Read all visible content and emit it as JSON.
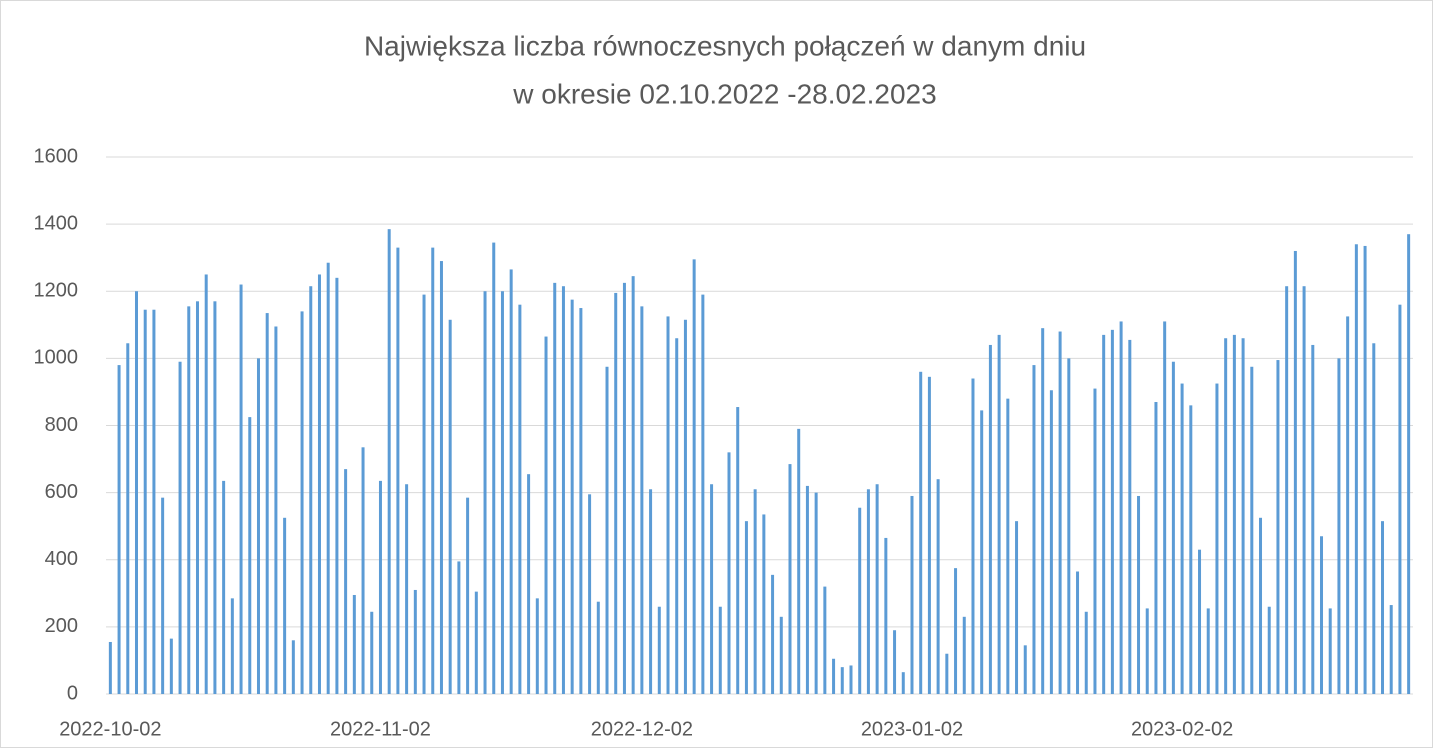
{
  "chart_data": {
    "type": "bar",
    "title": [
      "Największa liczba równoczesnych połączeń w danym dniu",
      "w okresie 02.10.2022 -28.02.2023"
    ],
    "categories": [
      "2022-10-02",
      null,
      null,
      null,
      null,
      null,
      null,
      null,
      null,
      null,
      null,
      null,
      null,
      null,
      null,
      null,
      null,
      null,
      null,
      null,
      null,
      null,
      null,
      null,
      null,
      null,
      null,
      null,
      null,
      null,
      null,
      "2022-11-02",
      null,
      null,
      null,
      null,
      null,
      null,
      null,
      null,
      null,
      null,
      null,
      null,
      null,
      null,
      null,
      null,
      null,
      null,
      null,
      null,
      null,
      null,
      null,
      null,
      null,
      null,
      null,
      null,
      null,
      "2022-12-02",
      null,
      null,
      null,
      null,
      null,
      null,
      null,
      null,
      null,
      null,
      null,
      null,
      null,
      null,
      null,
      null,
      null,
      null,
      null,
      null,
      null,
      null,
      null,
      null,
      null,
      null,
      null,
      null,
      null,
      null,
      "2023-01-02",
      null,
      null,
      null,
      null,
      null,
      null,
      null,
      null,
      null,
      null,
      null,
      null,
      null,
      null,
      null,
      null,
      null,
      null,
      null,
      null,
      null,
      null,
      null,
      null,
      null,
      null,
      null,
      null,
      null,
      null,
      "2023-02-02",
      null,
      null,
      null,
      null,
      null,
      null,
      null,
      null,
      null,
      null,
      null,
      null,
      null,
      null,
      null,
      null,
      null,
      null,
      null,
      null,
      null,
      null,
      null,
      null,
      null,
      null
    ],
    "values": [
      155,
      980,
      1045,
      1200,
      1145,
      1145,
      585,
      165,
      990,
      1155,
      1170,
      1250,
      1170,
      635,
      285,
      1220,
      825,
      1000,
      1135,
      1095,
      525,
      160,
      1140,
      1215,
      1250,
      1285,
      1240,
      670,
      295,
      735,
      245,
      635,
      1385,
      1330,
      625,
      310,
      1190,
      1330,
      1290,
      1115,
      395,
      585,
      305,
      1200,
      1345,
      1200,
      1265,
      1160,
      655,
      285,
      1065,
      1225,
      1215,
      1175,
      1150,
      595,
      275,
      975,
      1195,
      1225,
      1245,
      1155,
      610,
      260,
      1125,
      1060,
      1115,
      1295,
      1190,
      625,
      260,
      720,
      855,
      515,
      610,
      535,
      355,
      230,
      685,
      790,
      620,
      600,
      320,
      105,
      80,
      85,
      555,
      610,
      625,
      465,
      190,
      65,
      590,
      960,
      945,
      640,
      120,
      375,
      230,
      940,
      845,
      1040,
      1070,
      880,
      515,
      145,
      980,
      1090,
      905,
      1080,
      1000,
      365,
      245,
      910,
      1070,
      1085,
      1110,
      1055,
      590,
      255,
      870,
      1110,
      990,
      925,
      860,
      430,
      255,
      925,
      1060,
      1070,
      1060,
      975,
      525,
      260,
      995,
      1215,
      1320,
      1215,
      1040,
      470,
      255,
      1000,
      1125,
      1340,
      1335,
      1045,
      515,
      265,
      1160,
      1370
    ],
    "color": "#5b9bd5",
    "ylim": [
      0,
      1600
    ],
    "yticks": [
      0,
      200,
      400,
      600,
      800,
      1000,
      1200,
      1400,
      1600
    ],
    "grid": true
  }
}
